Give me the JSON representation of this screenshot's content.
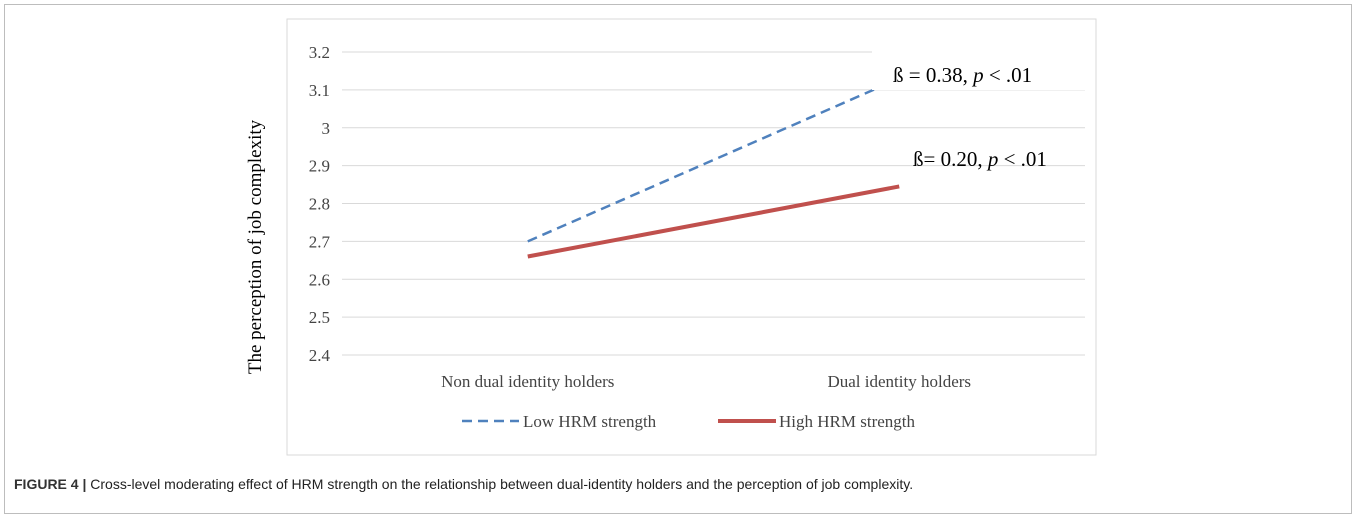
{
  "caption": {
    "label": "FIGURE 4 |",
    "text": "Cross-level moderating effect of HRM strength on the relationship between dual-identity holders and the perception of job complexity."
  },
  "chart_data": {
    "type": "line",
    "categories": [
      "Non dual identity holders",
      "Dual identity holders"
    ],
    "ylabel": "The perception of job complexity",
    "ylim": [
      2.4,
      3.2
    ],
    "yticks": [
      "2.4",
      "2.5",
      "2.6",
      "2.7",
      "2.8",
      "2.9",
      "3",
      "3.1",
      "3.2"
    ],
    "grid": true,
    "legend_position": "bottom",
    "series": [
      {
        "name": "Low HRM strength",
        "values": [
          2.7,
          3.13
        ],
        "color": "#4f81bd",
        "dash": true
      },
      {
        "name": "High HRM strength",
        "values": [
          2.66,
          2.845
        ],
        "color": "#c0504d",
        "dash": false
      }
    ],
    "annotations": [
      {
        "beta_symbol": "ß",
        "text_before_p": " = 0.38, ",
        "p_text": "p",
        "text_after_p": " < .01"
      },
      {
        "beta_symbol": "ß",
        "text_before_p": "= 0.20, ",
        "p_text": "p",
        "text_after_p": " < .01"
      }
    ]
  }
}
